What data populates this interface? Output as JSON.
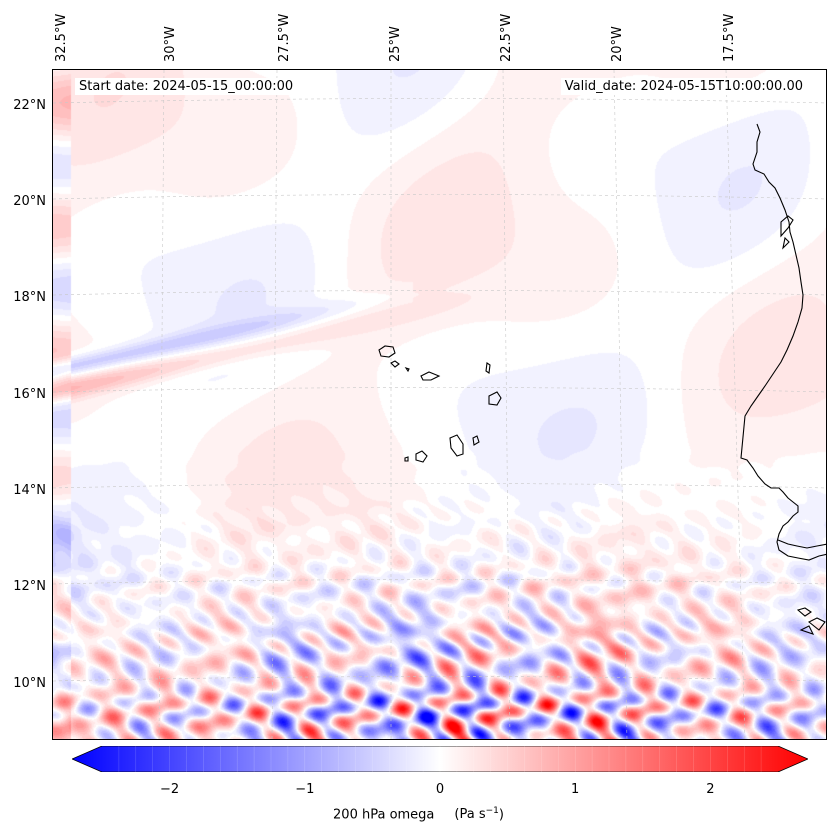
{
  "header": {
    "start_date": "Start date: 2024-05-15_00:00:00",
    "valid_date": "Valid_date: 2024-05-15T10:00:00.00"
  },
  "map": {
    "variable": "200 hPa omega",
    "units_base": "(Pa s",
    "units_exp": "−1",
    "units_close": ")",
    "longitude_labels": [
      "32.5°W",
      "30°W",
      "27.5°W",
      "25°W",
      "22.5°W",
      "20°W",
      "17.5°W"
    ],
    "latitude_labels": [
      "22°N",
      "20°N",
      "18°N",
      "16°N",
      "14°N",
      "12°N",
      "10°N"
    ],
    "extent": {
      "lon_min": -32.9,
      "lon_max": -15.0,
      "lat_min": 8.9,
      "lat_max": 22.8
    },
    "gridlines": true,
    "coastline_color": "#000000"
  },
  "colorbar": {
    "cmap": "bwr",
    "min": -2.5,
    "max": 2.5,
    "extend": "both",
    "tick_labels": [
      "−2",
      "−1",
      "0",
      "1",
      "2"
    ],
    "tick_values": [
      -2,
      -1,
      0,
      1,
      2
    ],
    "low_color": "#0000ff",
    "mid_color": "#ffffff",
    "high_color": "#ff0000"
  }
}
